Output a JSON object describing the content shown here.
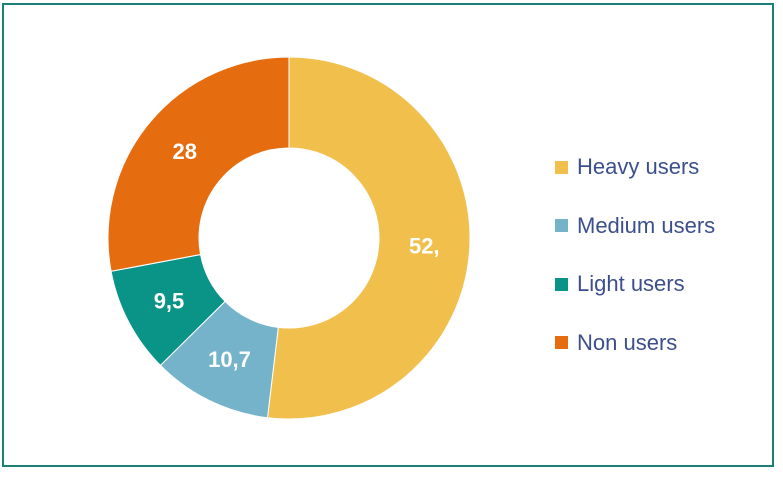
{
  "chart_data": {
    "type": "pie",
    "variant": "donut",
    "categories": [
      "Heavy users",
      "Medium users",
      "Light users",
      "Non users"
    ],
    "values": [
      52,
      10.7,
      9.5,
      28
    ],
    "data_labels": [
      "52,",
      "10,7",
      "9,5",
      "28"
    ],
    "colors": [
      "#f0bf4c",
      "#74b3ca",
      "#0a9387",
      "#e56d10"
    ],
    "legend_position": "right",
    "title": ""
  }
}
